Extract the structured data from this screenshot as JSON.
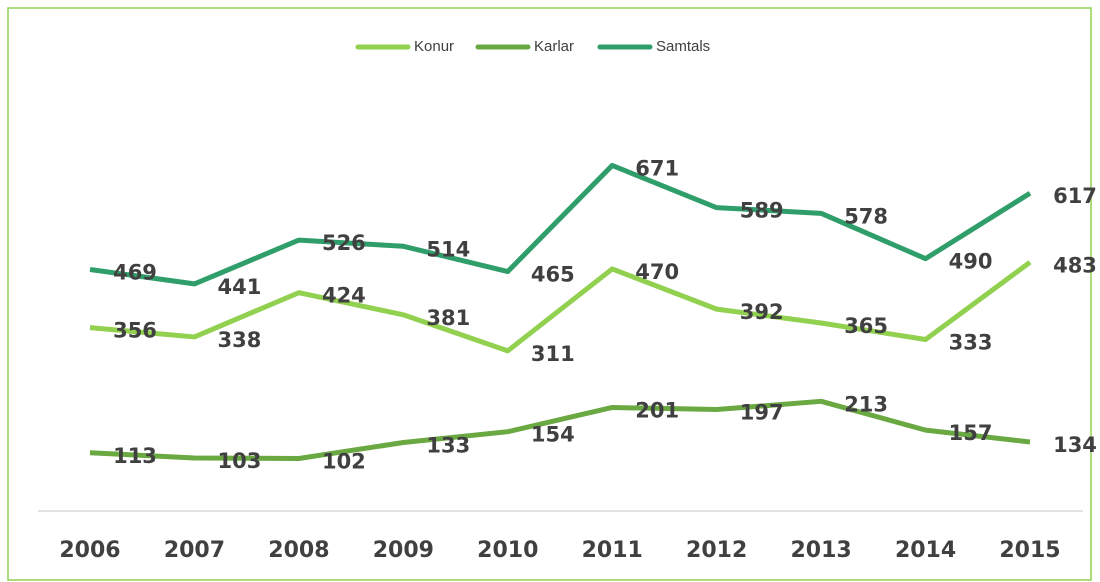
{
  "chart_data": {
    "type": "line",
    "categories": [
      "2006",
      "2007",
      "2008",
      "2009",
      "2010",
      "2011",
      "2012",
      "2013",
      "2014",
      "2015"
    ],
    "series": [
      {
        "name": "Konur",
        "color": "#92d050",
        "values": [
          356,
          338,
          424,
          381,
          311,
          470,
          392,
          365,
          333,
          483
        ]
      },
      {
        "name": "Karlar",
        "color": "#6aa842",
        "values": [
          113,
          103,
          102,
          133,
          154,
          201,
          197,
          213,
          157,
          134
        ]
      },
      {
        "name": "Samtals",
        "color": "#2f9e6b",
        "values": [
          469,
          441,
          526,
          514,
          465,
          671,
          589,
          578,
          490,
          617
        ]
      }
    ],
    "ylim": [
      0,
      800
    ],
    "legend": "top"
  }
}
